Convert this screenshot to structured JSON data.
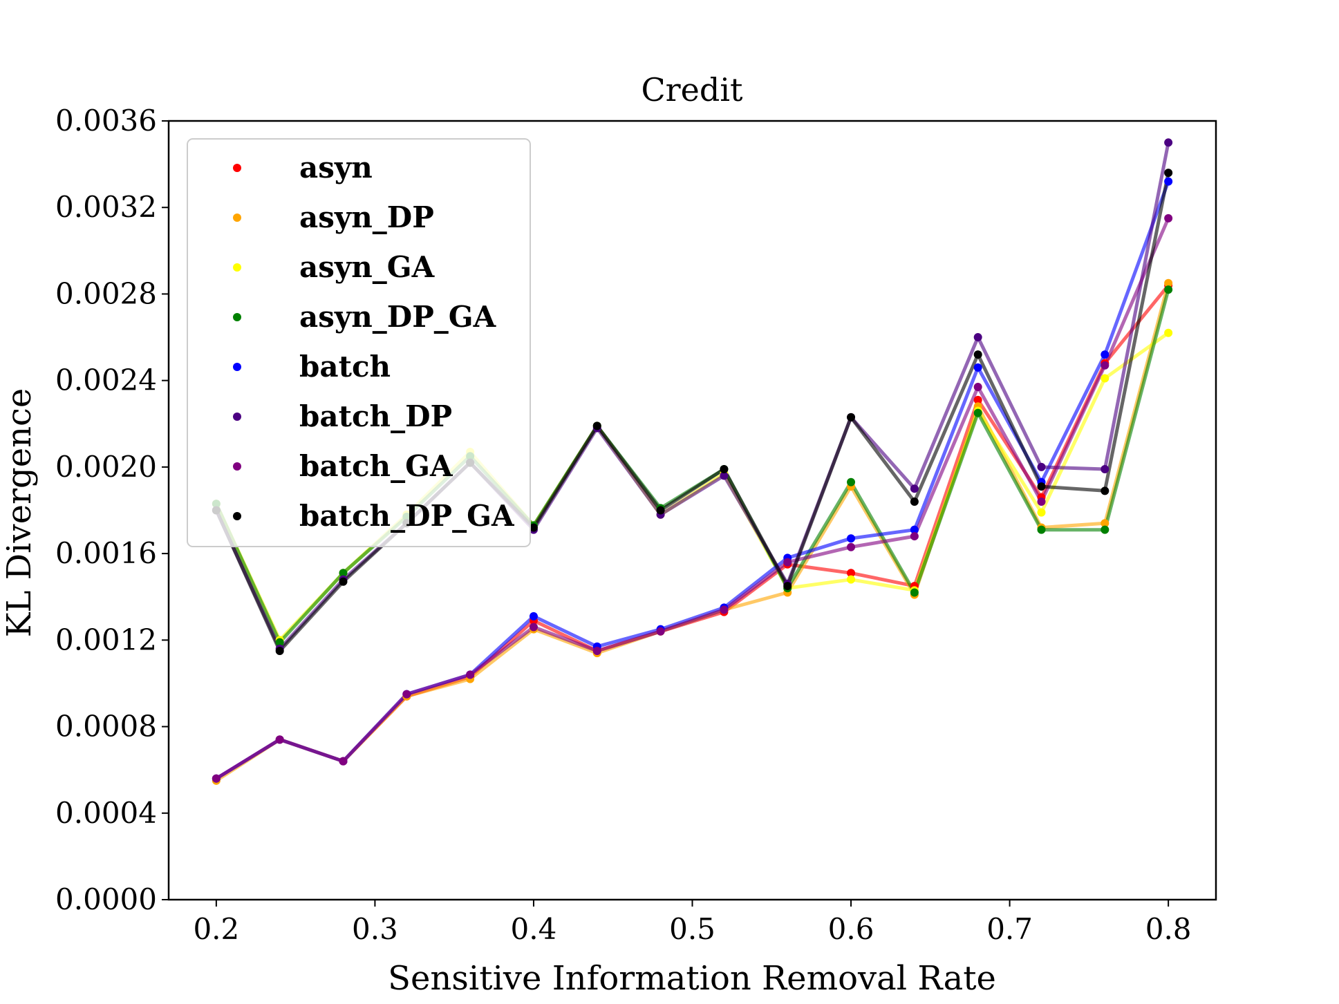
{
  "chart_data": {
    "type": "line",
    "title": "Credit",
    "xlabel": "Sensitive Information Removal Rate",
    "ylabel": "KL Divergence",
    "xlim": [
      0.17,
      0.83
    ],
    "ylim": [
      0.0,
      0.0036
    ],
    "x_ticks": [
      0.2,
      0.3,
      0.4,
      0.5,
      0.6,
      0.7,
      0.8
    ],
    "x_tick_labels": [
      "0.2",
      "0.3",
      "0.4",
      "0.5",
      "0.6",
      "0.7",
      "0.8"
    ],
    "y_ticks": [
      0.0,
      0.0004,
      0.0008,
      0.0012,
      0.0016,
      0.002,
      0.0024,
      0.0028,
      0.0032,
      0.0036
    ],
    "y_tick_labels": [
      "0.0000",
      "0.0004",
      "0.0008",
      "0.0012",
      "0.0016",
      "0.0020",
      "0.0024",
      "0.0028",
      "0.0032",
      "0.0036"
    ],
    "grid": false,
    "legend_position": "upper-left",
    "x": [
      0.2,
      0.24,
      0.28,
      0.32,
      0.36,
      0.4,
      0.44,
      0.48,
      0.52,
      0.56,
      0.6,
      0.64,
      0.68,
      0.72,
      0.76,
      0.8
    ],
    "series": [
      {
        "name": "asyn",
        "color": "#ff0000",
        "values": [
          0.00056,
          0.00074,
          0.00064,
          0.00094,
          0.00103,
          0.00129,
          0.00115,
          0.00124,
          0.00133,
          0.00155,
          0.00151,
          0.00145,
          0.00231,
          0.00186,
          0.00248,
          0.00284
        ]
      },
      {
        "name": "asyn_DP",
        "color": "#ffa500",
        "values": [
          0.00055,
          0.00074,
          0.00064,
          0.00094,
          0.00102,
          0.00125,
          0.00114,
          0.00124,
          0.00134,
          0.00142,
          0.00191,
          0.00141,
          0.00228,
          0.00172,
          0.00174,
          0.00285
        ]
      },
      {
        "name": "asyn_GA",
        "color": "#ffff00",
        "values": [
          0.00183,
          0.0012,
          0.00151,
          0.00178,
          0.00207,
          0.00173,
          0.00219,
          0.00178,
          0.00197,
          0.00144,
          0.00148,
          0.00143,
          0.00226,
          0.00179,
          0.00241,
          0.00262
        ]
      },
      {
        "name": "asyn_DP_GA",
        "color": "#008000",
        "values": [
          0.00183,
          0.00119,
          0.00151,
          0.00177,
          0.00205,
          0.00173,
          0.00219,
          0.00181,
          0.00199,
          0.00144,
          0.00193,
          0.00142,
          0.00225,
          0.00171,
          0.00171,
          0.00282
        ]
      },
      {
        "name": "batch",
        "color": "#0000ff",
        "values": [
          0.00056,
          0.00074,
          0.00064,
          0.00095,
          0.00104,
          0.00131,
          0.00117,
          0.00125,
          0.00135,
          0.00158,
          0.00167,
          0.00171,
          0.00246,
          0.00193,
          0.00252,
          0.00332
        ]
      },
      {
        "name": "batch_DP",
        "color": "#4b0082",
        "values": [
          0.0018,
          0.00116,
          0.00148,
          0.00174,
          0.00202,
          0.00171,
          0.00218,
          0.00178,
          0.00196,
          0.00146,
          0.00223,
          0.0019,
          0.0026,
          0.002,
          0.00199,
          0.0035
        ]
      },
      {
        "name": "batch_GA",
        "color": "#800080",
        "values": [
          0.00056,
          0.00074,
          0.00064,
          0.00095,
          0.00104,
          0.00126,
          0.00115,
          0.00124,
          0.00134,
          0.00156,
          0.00163,
          0.00168,
          0.00237,
          0.00184,
          0.00247,
          0.00315
        ]
      },
      {
        "name": "batch_DP_GA",
        "color": "#000000",
        "values": [
          0.0018,
          0.00115,
          0.00147,
          0.00174,
          0.00202,
          0.00172,
          0.00219,
          0.0018,
          0.00199,
          0.00145,
          0.00223,
          0.00184,
          0.00252,
          0.00191,
          0.00189,
          0.00336
        ]
      }
    ]
  }
}
